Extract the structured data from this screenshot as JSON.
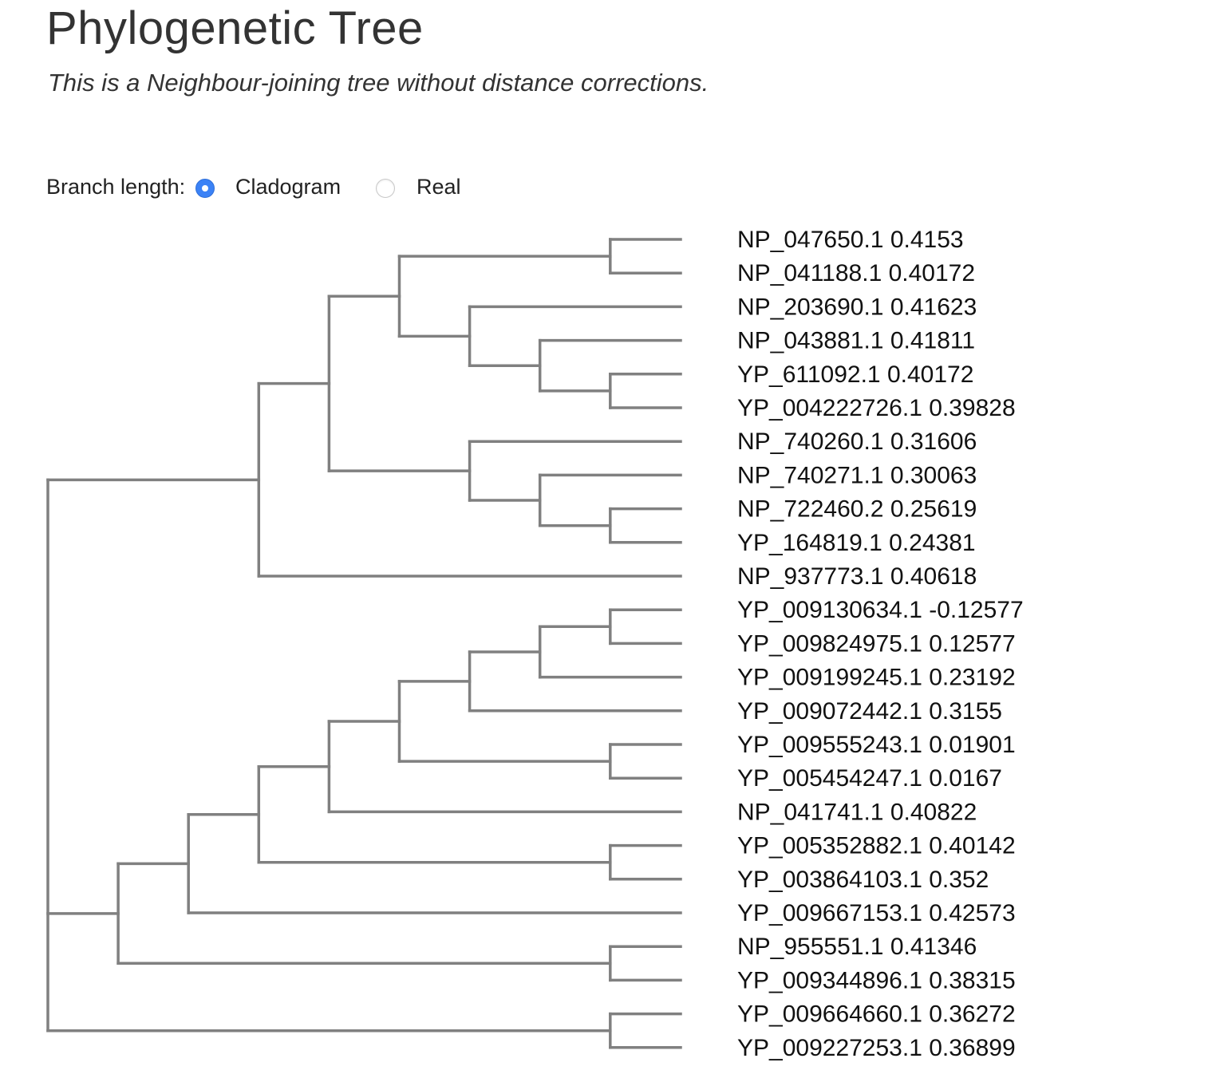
{
  "header": {
    "title": "Phylogenetic Tree",
    "subtitle": "This is a Neighbour-joining tree without distance corrections."
  },
  "controls": {
    "label": "Branch length:",
    "options": [
      {
        "label": "Cladogram",
        "selected": true
      },
      {
        "label": "Real",
        "selected": false
      }
    ],
    "accent_color": "#3b82f6"
  },
  "tree": {
    "branch_color": "#808080",
    "leaves": [
      {
        "id": "NP_047650.1",
        "value": "0.4153"
      },
      {
        "id": "NP_041188.1",
        "value": "0.40172"
      },
      {
        "id": "NP_203690.1",
        "value": "0.41623"
      },
      {
        "id": "NP_043881.1",
        "value": "0.41811"
      },
      {
        "id": "YP_611092.1",
        "value": "0.40172"
      },
      {
        "id": "YP_004222726.1",
        "value": "0.39828"
      },
      {
        "id": "NP_740260.1",
        "value": "0.31606"
      },
      {
        "id": "NP_740271.1",
        "value": "0.30063"
      },
      {
        "id": "NP_722460.2",
        "value": "0.25619"
      },
      {
        "id": "YP_164819.1",
        "value": "0.24381"
      },
      {
        "id": "NP_937773.1",
        "value": "0.40618"
      },
      {
        "id": "YP_009130634.1",
        "value": "-0.12577"
      },
      {
        "id": "YP_009824975.1",
        "value": "0.12577"
      },
      {
        "id": "YP_009199245.1",
        "value": "0.23192"
      },
      {
        "id": "YP_009072442.1",
        "value": "0.3155"
      },
      {
        "id": "YP_009555243.1",
        "value": "0.01901"
      },
      {
        "id": "YP_005454247.1",
        "value": "0.0167"
      },
      {
        "id": "NP_041741.1",
        "value": "0.40822"
      },
      {
        "id": "YP_005352882.1",
        "value": "0.40142"
      },
      {
        "id": "YP_003864103.1",
        "value": "0.352"
      },
      {
        "id": "YP_009667153.1",
        "value": "0.42573"
      },
      {
        "id": "NP_955551.1",
        "value": "0.41346"
      },
      {
        "id": "YP_009344896.1",
        "value": "0.38315"
      },
      {
        "id": "YP_009664660.1",
        "value": "0.36272"
      },
      {
        "id": "YP_009227253.1",
        "value": "0.36899"
      }
    ],
    "topology": [
      [
        [
          [
            [
              0,
              1
            ],
            [
              2,
              [
                3,
                [
                  4,
                  5
                ]
              ]
            ]
          ],
          [
            6,
            [
              7,
              [
                8,
                9
              ]
            ]
          ]
        ],
        10
      ],
      [
        [
          [
            [
              [
                [
                  [
                    [
                      11,
                      12
                    ],
                    13
                  ],
                  14
                ],
                [
                  15,
                  16
                ]
              ],
              17
            ],
            [
              18,
              19
            ]
          ],
          20
        ],
        [
          21,
          22
        ]
      ],
      [
        23,
        24
      ]
    ]
  }
}
